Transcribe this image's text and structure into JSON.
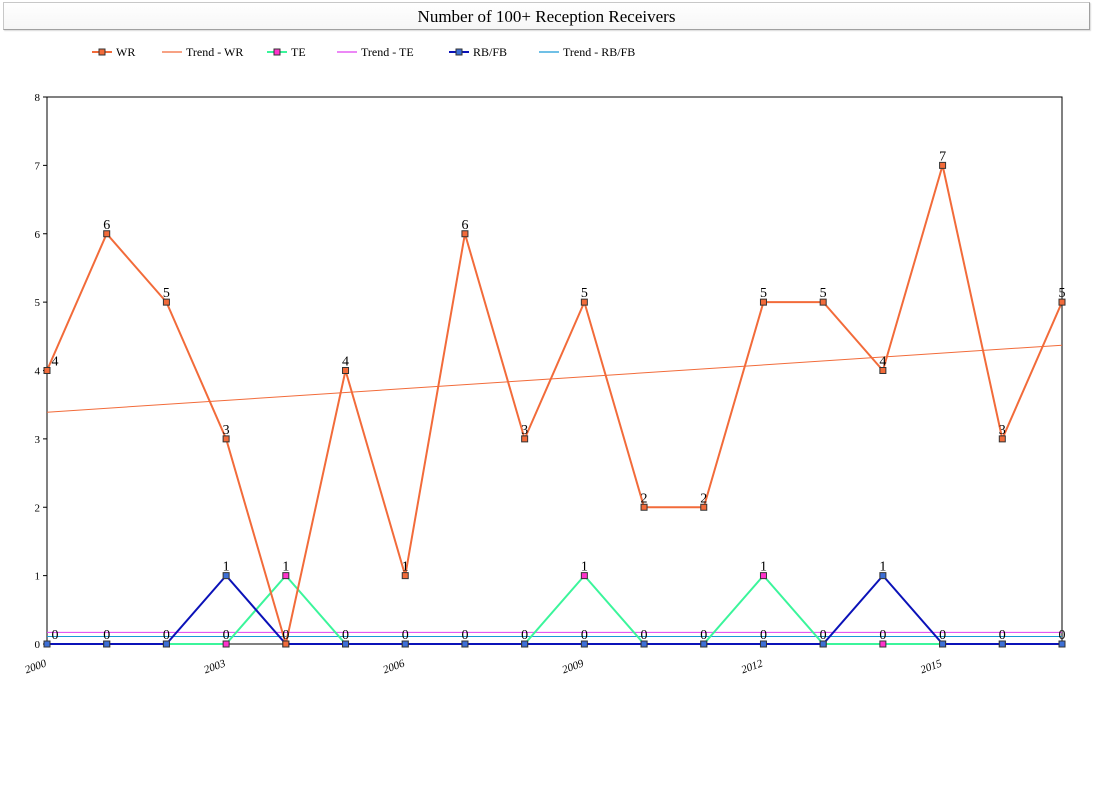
{
  "title": "Number of 100+ Reception Receivers",
  "chart_data": {
    "type": "line",
    "title": "Number of 100+ Reception Receivers",
    "xlabel": "",
    "ylabel": "",
    "x": [
      2000,
      2001,
      2002,
      2003,
      2004,
      2005,
      2006,
      2007,
      2008,
      2009,
      2010,
      2011,
      2012,
      2013,
      2014,
      2015,
      2016,
      2017
    ],
    "x_tick_labels": [
      2000,
      2003,
      2006,
      2009,
      2012,
      2015
    ],
    "ylim": [
      0,
      8
    ],
    "y_ticks": [
      0,
      1,
      2,
      3,
      4,
      5,
      6,
      7,
      8
    ],
    "grid": false,
    "legend_position": "top-left",
    "series": [
      {
        "name": "WR",
        "color": "#f26b3a",
        "marker": "#f26b3a",
        "values": [
          4,
          6,
          5,
          3,
          0,
          4,
          1,
          6,
          3,
          5,
          2,
          2,
          5,
          5,
          4,
          7,
          3,
          5
        ]
      },
      {
        "name": "TE",
        "color": "#3bf59b",
        "marker": "#ff33cc",
        "values": [
          0,
          0,
          0,
          0,
          1,
          0,
          0,
          0,
          0,
          1,
          0,
          0,
          1,
          0,
          0,
          0,
          0,
          0
        ]
      },
      {
        "name": "RB/FB",
        "color": "#0b12b8",
        "marker": "#3d6fd6",
        "values": [
          0,
          0,
          0,
          1,
          0,
          0,
          0,
          0,
          0,
          0,
          0,
          0,
          0,
          0,
          1,
          0,
          0,
          0
        ]
      }
    ],
    "trendlines": [
      {
        "name": "Trend - WR",
        "color": "#f26b3a",
        "start": 3.39,
        "end": 4.37
      },
      {
        "name": "Trend - TE",
        "color": "#e040f0",
        "start": 0.17,
        "end": 0.17
      },
      {
        "name": "Trend - RB/FB",
        "color": "#1a9ad6",
        "start": 0.11,
        "end": 0.11
      }
    ],
    "legend": [
      {
        "label": "WR",
        "kind": "series",
        "color": "#f26b3a",
        "marker": "#f26b3a"
      },
      {
        "label": "Trend - WR",
        "kind": "trend",
        "color": "#f26b3a"
      },
      {
        "label": "TE",
        "kind": "series",
        "color": "#3bf59b",
        "marker": "#ff33cc"
      },
      {
        "label": "Trend - TE",
        "kind": "trend",
        "color": "#e040f0"
      },
      {
        "label": "RB/FB",
        "kind": "series",
        "color": "#0b12b8",
        "marker": "#3d6fd6"
      },
      {
        "label": "Trend - RB/FB",
        "kind": "trend",
        "color": "#1a9ad6"
      }
    ]
  }
}
